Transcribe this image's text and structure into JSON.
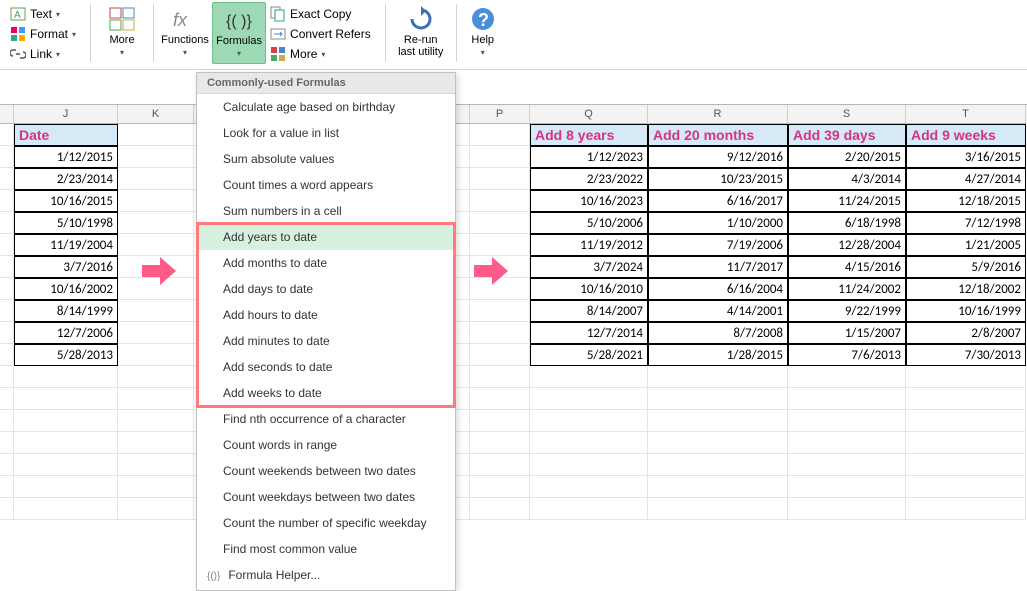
{
  "ribbon": {
    "small": {
      "text": "Text",
      "format": "Format",
      "link": "Link"
    },
    "more1": "More",
    "functions": "Functions",
    "formulas": "Formulas",
    "exact_copy": "Exact Copy",
    "convert_refers": "Convert Refers",
    "more2": "More",
    "rerun": "Re-run\nlast utility",
    "help": "Help"
  },
  "menu": {
    "title": "Commonly-used Formulas",
    "items": [
      "Calculate age based on birthday",
      "Look for a value in list",
      "Sum absolute values",
      "Count times a word appears",
      "Sum numbers in a cell",
      "Add years to date",
      "Add months to date",
      "Add days to date",
      "Add hours to date",
      "Add minutes to date",
      "Add seconds to date",
      "Add weeks to date",
      "Find nth occurrence of a character",
      "Count words in range",
      "Count weekends between two dates",
      "Count weekdays between two dates",
      "Count the number of specific weekday",
      "Find most common value"
    ],
    "helper": "Formula Helper...",
    "highlight_index": 5,
    "redbox_from": 5,
    "redbox_to": 11,
    "bg_hover": "#d8f0e0",
    "border_redbox": "#ff7a7a"
  },
  "columns": {
    "visible": [
      "J",
      "K",
      "",
      "P",
      "Q",
      "R",
      "S",
      "T"
    ]
  },
  "left_table": {
    "header": "Date",
    "rows": [
      "1/12/2015",
      "2/23/2014",
      "10/16/2015",
      "5/10/1998",
      "11/19/2004",
      "3/7/2016",
      "10/16/2002",
      "8/14/1999",
      "12/7/2006",
      "5/28/2013"
    ]
  },
  "right_table": {
    "headers": [
      "Add 8 years",
      "Add 20 months",
      "Add 39 days",
      "Add 9 weeks"
    ],
    "rows": [
      [
        "1/12/2023",
        "9/12/2016",
        "2/20/2015",
        "3/16/2015"
      ],
      [
        "2/23/2022",
        "10/23/2015",
        "4/3/2014",
        "4/27/2014"
      ],
      [
        "10/16/2023",
        "6/16/2017",
        "11/24/2015",
        "12/18/2015"
      ],
      [
        "5/10/2006",
        "1/10/2000",
        "6/18/1998",
        "7/12/1998"
      ],
      [
        "11/19/2012",
        "7/19/2006",
        "12/28/2004",
        "1/21/2005"
      ],
      [
        "3/7/2024",
        "11/7/2017",
        "4/15/2016",
        "5/9/2016"
      ],
      [
        "10/16/2010",
        "6/16/2004",
        "11/24/2002",
        "12/18/2002"
      ],
      [
        "8/14/2007",
        "4/14/2001",
        "9/22/1999",
        "10/16/1999"
      ],
      [
        "12/7/2014",
        "8/7/2008",
        "1/15/2007",
        "2/8/2007"
      ],
      [
        "5/28/2021",
        "1/28/2015",
        "7/6/2013",
        "7/30/2013"
      ]
    ]
  },
  "style": {
    "header_bg": "#d6e9f6",
    "header_color": "#d63384",
    "formulas_bg": "#9ed9b5",
    "arrow_color": "#ff5b8a"
  }
}
